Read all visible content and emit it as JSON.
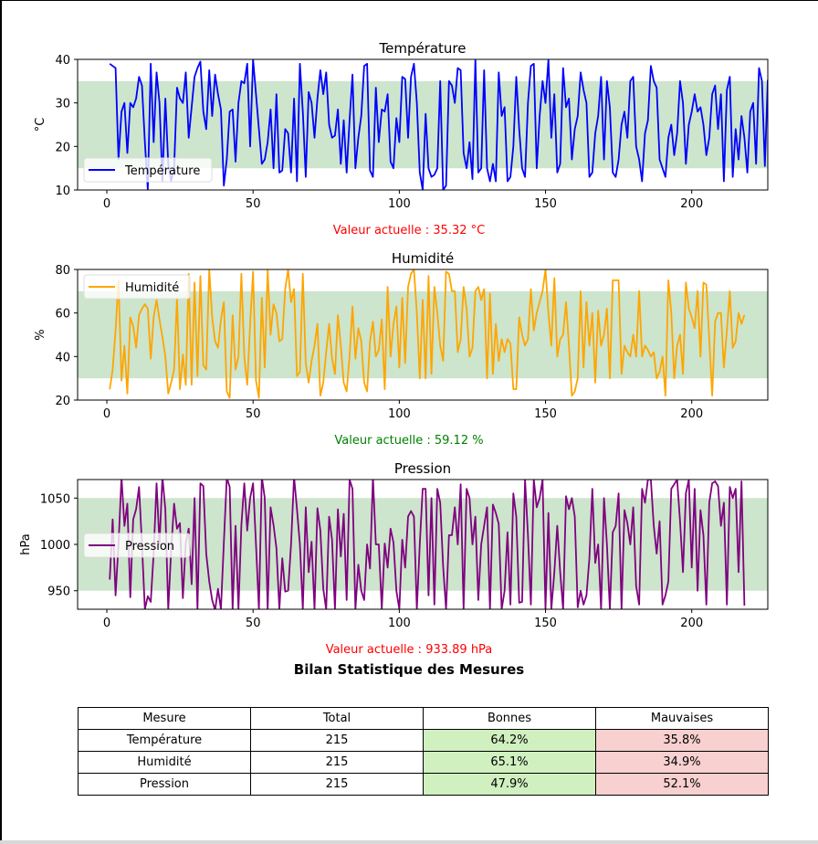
{
  "charts": [
    {
      "type": "line",
      "title": "Température",
      "ylabel": "°C",
      "xlabel": "",
      "legend": "Température",
      "legend_position": "lower-left",
      "color": "#0000ff",
      "band": [
        15,
        35
      ],
      "band_color": "#cce5cc",
      "xlim": [
        -10,
        226
      ],
      "ylim": [
        10,
        40
      ],
      "xticks": [
        0,
        50,
        100,
        150,
        200
      ],
      "yticks": [
        10,
        20,
        30,
        40
      ],
      "current_label": "Valeur actuelle : 35.32 °C",
      "current_color": "#ff0000",
      "values": [
        39,
        38.5,
        38,
        17,
        28,
        30,
        18.5,
        30,
        29,
        31,
        36,
        34,
        21,
        10,
        39,
        21,
        37,
        30,
        12,
        31,
        16,
        12,
        15,
        33.5,
        31,
        30,
        37,
        22,
        29,
        36,
        38,
        39.5,
        28,
        24,
        37.5,
        27,
        36.5,
        32,
        28.5,
        11,
        17,
        28,
        28.5,
        16.5,
        30,
        35,
        34.5,
        39,
        20,
        40,
        32,
        24,
        16,
        17,
        21,
        28.5,
        15,
        32,
        14,
        14.5,
        24,
        23,
        14,
        31,
        12,
        39,
        28,
        13,
        32.5,
        30,
        22,
        31,
        37.5,
        32,
        37,
        25,
        22,
        22.5,
        28.5,
        16,
        26,
        14,
        26,
        36.5,
        15,
        22,
        27,
        38.5,
        39,
        14.5,
        13,
        33.5,
        21,
        28.5,
        28,
        32,
        16.5,
        15,
        26.5,
        21,
        36,
        35.5,
        22,
        36,
        39,
        30,
        14,
        10,
        27.5,
        15,
        13,
        13.5,
        15,
        35,
        10,
        11,
        35,
        34,
        30,
        38,
        37.5,
        18.5,
        15,
        21,
        12.5,
        40,
        14,
        15,
        37.5,
        15,
        12,
        16,
        12,
        37,
        27,
        29,
        12,
        13,
        20,
        36,
        24,
        15,
        13,
        30,
        38.5,
        39,
        15,
        27,
        35,
        30,
        40,
        22,
        32,
        14,
        16,
        38,
        29,
        31,
        17,
        24,
        27,
        37,
        33,
        30,
        13,
        14,
        23,
        27,
        36,
        17,
        35,
        29,
        14,
        13,
        17,
        25,
        28,
        22,
        35,
        36,
        20,
        17,
        12,
        23,
        26,
        38.5,
        35,
        33.5,
        17,
        15,
        13,
        22,
        25,
        18,
        23,
        35,
        30,
        16,
        25,
        28,
        32,
        28,
        29,
        25,
        18,
        22,
        32,
        34,
        24,
        32,
        12,
        33,
        36,
        13,
        24,
        17,
        27,
        22,
        14,
        28,
        30,
        16,
        38,
        35,
        15.5,
        35.3
      ]
    },
    {
      "type": "line",
      "title": "Humidité",
      "ylabel": "%",
      "xlabel": "",
      "legend": "Humidité",
      "legend_position": "upper-left",
      "color": "#ffa500",
      "band": [
        30,
        70
      ],
      "band_color": "#cce5cc",
      "xlim": [
        -10,
        226
      ],
      "ylim": [
        20,
        80
      ],
      "xticks": [
        0,
        50,
        100,
        150,
        200
      ],
      "yticks": [
        20,
        40,
        60,
        80
      ],
      "current_label": "Valeur actuelle : 59.12 %",
      "current_color": "#008000",
      "values": [
        25,
        34,
        52,
        75,
        29,
        45,
        23,
        58,
        54,
        44,
        59,
        62,
        64,
        62,
        39,
        58,
        66,
        57,
        49,
        40,
        23,
        28,
        34,
        67,
        25,
        41,
        27,
        78,
        27,
        74,
        31,
        77,
        36,
        34,
        80,
        58,
        47,
        44,
        57,
        65,
        24,
        21,
        59,
        34,
        40,
        78,
        40,
        27,
        55,
        79,
        29,
        21,
        67,
        35,
        80,
        50,
        64,
        60,
        47,
        48,
        71,
        80,
        65,
        71,
        31,
        33,
        78,
        37,
        28,
        38,
        45,
        55,
        22,
        28,
        42,
        55,
        39,
        32,
        59,
        45,
        28,
        24,
        40,
        63,
        39,
        53,
        47,
        28,
        24,
        47,
        56,
        40,
        43,
        57,
        25,
        72,
        40,
        55,
        63,
        35,
        67,
        37,
        72,
        78,
        80,
        60,
        30,
        66,
        30,
        77,
        32,
        72,
        60,
        45,
        38,
        79,
        78,
        70,
        70,
        42,
        48,
        72,
        62,
        40,
        44,
        70,
        72,
        66,
        71,
        30,
        69,
        32,
        55,
        38,
        48,
        42,
        48,
        46,
        25,
        25,
        58,
        50,
        45,
        48,
        71,
        52,
        60,
        65,
        70,
        80,
        60,
        45,
        76,
        40,
        48,
        50,
        65,
        45,
        22,
        24,
        30,
        70,
        35,
        65,
        45,
        60,
        28,
        61,
        45,
        50,
        62,
        30,
        75,
        75,
        75,
        32,
        45,
        42,
        40,
        50,
        40,
        70,
        40,
        45,
        43,
        40,
        42,
        30,
        33,
        40,
        22,
        75,
        60,
        30,
        45,
        50,
        32,
        74,
        62,
        58,
        53,
        70,
        40,
        74,
        73,
        48,
        22,
        56,
        60,
        60,
        35,
        52,
        70,
        44,
        47,
        60,
        55,
        59.1
      ]
    },
    {
      "type": "line",
      "title": "Pression",
      "ylabel": "hPa",
      "xlabel": "",
      "legend": "Pression",
      "legend_position": "center-left",
      "color": "#800080",
      "band": [
        950,
        1050
      ],
      "band_color": "#cce5cc",
      "xlim": [
        -10,
        226
      ],
      "ylim": [
        930,
        1070
      ],
      "xticks": [
        0,
        50,
        100,
        150,
        200
      ],
      "yticks": [
        950,
        1000,
        1050
      ],
      "current_label": "Valeur actuelle : 933.89 hPa",
      "current_color": "#ff0000",
      "values": [
        962,
        1027,
        945,
        1000,
        1073,
        1020,
        1044,
        943,
        1027,
        1038,
        1062,
        1000,
        930,
        944,
        938,
        990,
        1066,
        1000,
        1073,
        1038,
        930,
        994,
        1044,
        1017,
        1023,
        942,
        1002,
        1017,
        957,
        1050,
        930,
        1066,
        1063,
        990,
        960,
        940,
        929,
        952,
        930,
        1002,
        1072,
        1062,
        930,
        1020,
        930,
        1021,
        1066,
        1015,
        1050,
        1066,
        1000,
        930,
        1073,
        1050,
        930,
        1040,
        1021,
        996,
        930,
        985,
        949,
        950,
        1000,
        1073,
        1038,
        1000,
        930,
        1040,
        970,
        1003,
        930,
        1039,
        1015,
        952,
        930,
        1030,
        1005,
        930,
        1038,
        987,
        1033,
        940,
        1070,
        1060,
        930,
        978,
        950,
        940,
        1000,
        974,
        1073,
        1000,
        1000,
        930,
        1001,
        975,
        1017,
        1002,
        950,
        930,
        1005,
        975,
        1030,
        1036,
        1030,
        930,
        1000,
        1060,
        1060,
        945,
        1050,
        935,
        1060,
        1045,
        976,
        930,
        1010,
        1010,
        1040,
        1000,
        1065,
        930,
        1060,
        1050,
        1000,
        1030,
        940,
        1000,
        1020,
        1040,
        930,
        1043,
        1034,
        1022,
        930,
        950,
        1013,
        935,
        1055,
        1030,
        937,
        938,
        1070,
        1010,
        935,
        1070,
        1040,
        1050,
        1070,
        930,
        1034,
        930,
        970,
        1020,
        970,
        930,
        1052,
        1038,
        1050,
        1030,
        932,
        950,
        935,
        945,
        985,
        1060,
        980,
        1000,
        930,
        1050,
        1000,
        930,
        1013,
        1020,
        1055,
        930,
        1037,
        1023,
        1000,
        1040,
        955,
        935,
        1060,
        1045,
        1070,
        1070,
        1020,
        990,
        1025,
        935,
        945,
        960,
        1060,
        1065,
        1070,
        1025,
        970,
        1055,
        1070,
        975,
        1060,
        950,
        1037,
        1010,
        935,
        1045,
        1066,
        1068,
        1063,
        1020,
        1045,
        935,
        1062,
        1050,
        1060,
        970,
        1068,
        933.9
      ]
    }
  ],
  "table": {
    "title": "Bilan Statistique des Mesures",
    "headers": [
      "Mesure",
      "Total",
      "Bonnes",
      "Mauvaises"
    ],
    "rows": [
      [
        "Température",
        "215",
        "64.2%",
        "35.8%"
      ],
      [
        "Humidité",
        "215",
        "65.1%",
        "34.9%"
      ],
      [
        "Pression",
        "215",
        "47.9%",
        "52.1%"
      ]
    ],
    "good_color": "#d0f0c0",
    "bad_color": "#f8d0d0"
  },
  "chart_data": [
    {
      "type": "line",
      "title": "Température",
      "ylabel": "°C",
      "ylim": [
        10,
        40
      ],
      "xlim": [
        -10,
        226
      ],
      "series": [
        {
          "name": "Température",
          "color": "#0000ff"
        }
      ],
      "band": [
        15,
        35
      ],
      "current": 35.32,
      "n_points": 215
    },
    {
      "type": "line",
      "title": "Humidité",
      "ylabel": "%",
      "ylim": [
        20,
        80
      ],
      "xlim": [
        -10,
        226
      ],
      "series": [
        {
          "name": "Humidité",
          "color": "#ffa500"
        }
      ],
      "band": [
        30,
        70
      ],
      "current": 59.12,
      "n_points": 215
    },
    {
      "type": "line",
      "title": "Pression",
      "ylabel": "hPa",
      "ylim": [
        930,
        1070
      ],
      "xlim": [
        -10,
        226
      ],
      "series": [
        {
          "name": "Pression",
          "color": "#800080"
        }
      ],
      "band": [
        950,
        1050
      ],
      "current": 933.89,
      "n_points": 215
    },
    {
      "type": "table",
      "title": "Bilan Statistique des Mesures",
      "headers": [
        "Mesure",
        "Total",
        "Bonnes",
        "Mauvaises"
      ],
      "rows": [
        [
          "Température",
          215,
          "64.2%",
          "35.8%"
        ],
        [
          "Humidité",
          215,
          "65.1%",
          "34.9%"
        ],
        [
          "Pression",
          215,
          "47.9%",
          "52.1%"
        ]
      ]
    }
  ]
}
